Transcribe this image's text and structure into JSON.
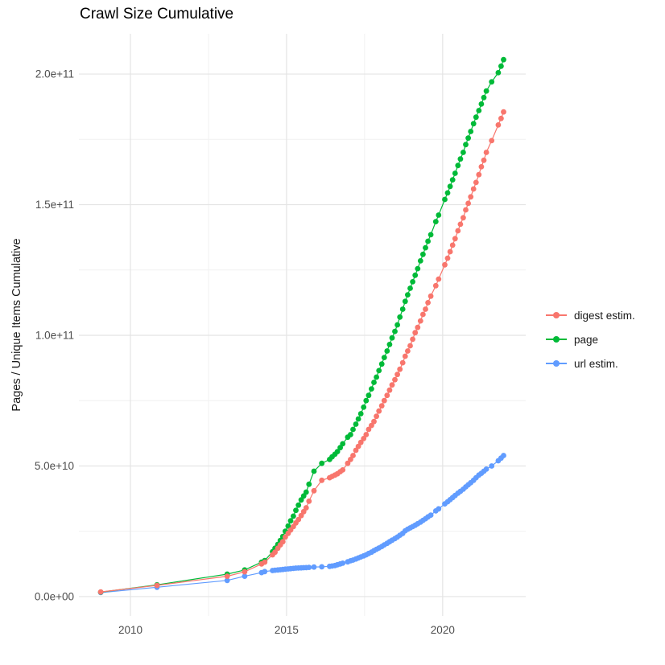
{
  "title": "Crawl Size Cumulative",
  "chart_data": {
    "type": "line",
    "title": "Crawl Size Cumulative",
    "xlabel": "",
    "ylabel": "Pages / Unique Items Cumulative",
    "legend_position": "right",
    "grid": "on",
    "xlim": [
      2008.35,
      2022.66
    ],
    "ylim_e10": [
      -0.74,
      21.54
    ],
    "value_scale": 10000000000,
    "x_axis": {
      "ticks": [
        {
          "label": "2010",
          "year": 2010
        },
        {
          "label": "2015",
          "year": 2015
        },
        {
          "label": "2020",
          "year": 2020
        }
      ],
      "minor_years": [
        2012.5,
        2017.5
      ]
    },
    "y_axis": {
      "ticks": [
        {
          "label": "0.0e+00",
          "value": 0
        },
        {
          "label": "5.0e+10",
          "value": 5
        },
        {
          "label": "1.0e+11",
          "value": 10
        },
        {
          "label": "1.5e+11",
          "value": 15
        },
        {
          "label": "2.0e+11",
          "value": 20
        }
      ],
      "minor_values": [
        2.5,
        7.5,
        12.5,
        17.5
      ]
    },
    "x": [
      2009.05,
      2010.85,
      2013.1,
      2013.66,
      2014.2,
      2014.3,
      2014.55,
      2014.63,
      2014.72,
      2014.8,
      2014.88,
      2014.96,
      2015.05,
      2015.13,
      2015.22,
      2015.3,
      2015.38,
      2015.47,
      2015.55,
      2015.63,
      2015.72,
      2015.88,
      2016.13,
      2016.38,
      2016.46,
      2016.55,
      2016.63,
      2016.72,
      2016.8,
      2016.96,
      2017.05,
      2017.13,
      2017.22,
      2017.3,
      2017.38,
      2017.47,
      2017.55,
      2017.63,
      2017.72,
      2017.8,
      2017.88,
      2017.96,
      2018.05,
      2018.13,
      2018.22,
      2018.3,
      2018.38,
      2018.47,
      2018.55,
      2018.63,
      2018.72,
      2018.8,
      2018.88,
      2018.96,
      2019.04,
      2019.12,
      2019.2,
      2019.29,
      2019.37,
      2019.45,
      2019.53,
      2019.62,
      2019.78,
      2019.87,
      2020.07,
      2020.16,
      2020.24,
      2020.32,
      2020.4,
      2020.49,
      2020.57,
      2020.66,
      2020.74,
      2020.82,
      2020.9,
      2020.99,
      2021.07,
      2021.16,
      2021.24,
      2021.32,
      2021.4,
      2021.57,
      2021.78,
      2021.87,
      2021.95
    ],
    "series": [
      {
        "name": "digest estim.",
        "color": "#F8766D",
        "values_e10": [
          0.18,
          0.43,
          0.78,
          0.95,
          1.25,
          1.32,
          1.6,
          1.7,
          1.85,
          1.98,
          2.1,
          2.28,
          2.42,
          2.55,
          2.68,
          2.82,
          2.95,
          3.1,
          3.25,
          3.4,
          3.65,
          4.05,
          4.45,
          4.55,
          4.6,
          4.65,
          4.7,
          4.78,
          4.85,
          5.1,
          5.25,
          5.4,
          5.6,
          5.75,
          5.9,
          6.05,
          6.2,
          6.4,
          6.55,
          6.7,
          6.9,
          7.1,
          7.3,
          7.5,
          7.7,
          7.9,
          8.1,
          8.3,
          8.5,
          8.7,
          8.95,
          9.2,
          9.4,
          9.6,
          9.85,
          10.1,
          10.3,
          10.55,
          10.8,
          11.0,
          11.25,
          11.5,
          11.9,
          12.15,
          12.7,
          12.95,
          13.2,
          13.45,
          13.7,
          14.0,
          14.25,
          14.5,
          14.8,
          15.05,
          15.3,
          15.6,
          15.85,
          16.15,
          16.45,
          16.7,
          17.0,
          17.45,
          18.05,
          18.3,
          18.55
        ]
      },
      {
        "name": "page",
        "color": "#00BA38",
        "values_e10": [
          0.17,
          0.45,
          0.86,
          1.02,
          1.32,
          1.38,
          1.72,
          1.85,
          2.0,
          2.15,
          2.3,
          2.5,
          2.7,
          2.9,
          3.08,
          3.3,
          3.5,
          3.7,
          3.85,
          4.0,
          4.3,
          4.8,
          5.1,
          5.25,
          5.35,
          5.45,
          5.55,
          5.7,
          5.85,
          6.1,
          6.2,
          6.4,
          6.6,
          6.8,
          7.0,
          7.25,
          7.5,
          7.7,
          7.95,
          8.2,
          8.4,
          8.65,
          8.9,
          9.15,
          9.4,
          9.65,
          9.9,
          10.15,
          10.4,
          10.7,
          11.0,
          11.3,
          11.55,
          11.8,
          12.05,
          12.3,
          12.55,
          12.85,
          13.1,
          13.35,
          13.6,
          13.85,
          14.35,
          14.6,
          15.2,
          15.45,
          15.7,
          15.95,
          16.2,
          16.5,
          16.75,
          17.0,
          17.3,
          17.55,
          17.8,
          18.1,
          18.35,
          18.6,
          18.85,
          19.1,
          19.35,
          19.7,
          20.05,
          20.3,
          20.55
        ]
      },
      {
        "name": "url estim.",
        "color": "#619CFF",
        "values_e10": [
          0.155,
          0.36,
          0.62,
          0.78,
          0.92,
          0.96,
          1.0,
          1.01,
          1.02,
          1.03,
          1.04,
          1.05,
          1.06,
          1.07,
          1.08,
          1.09,
          1.095,
          1.1,
          1.105,
          1.11,
          1.12,
          1.13,
          1.14,
          1.16,
          1.17,
          1.19,
          1.22,
          1.25,
          1.28,
          1.33,
          1.37,
          1.4,
          1.44,
          1.48,
          1.52,
          1.56,
          1.6,
          1.65,
          1.7,
          1.76,
          1.81,
          1.86,
          1.92,
          1.98,
          2.04,
          2.1,
          2.16,
          2.22,
          2.28,
          2.35,
          2.42,
          2.52,
          2.58,
          2.63,
          2.68,
          2.73,
          2.79,
          2.85,
          2.92,
          2.98,
          3.05,
          3.12,
          3.28,
          3.36,
          3.55,
          3.63,
          3.71,
          3.79,
          3.87,
          3.96,
          4.03,
          4.11,
          4.2,
          4.28,
          4.36,
          4.45,
          4.55,
          4.65,
          4.72,
          4.8,
          4.88,
          5.0,
          5.2,
          5.3,
          5.4
        ]
      }
    ],
    "colors": {
      "grid_major": "#e4e4e4",
      "grid_minor": "#f1f1f1",
      "tick_text": "#4d4d4d"
    }
  }
}
